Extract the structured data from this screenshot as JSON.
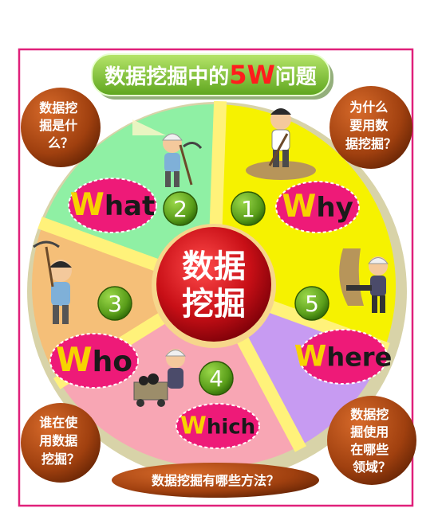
{
  "title": {
    "prefix": "数据挖掘中的",
    "highlight": "5W",
    "suffix": "问题"
  },
  "center": {
    "line1": "数据",
    "line2": "挖掘"
  },
  "segments": [
    {
      "num": "1",
      "first": "W",
      "rest": "hy",
      "color": "#f6f200"
    },
    {
      "num": "2",
      "first": "W",
      "rest": "hat",
      "color": "#8ff0a4"
    },
    {
      "num": "3",
      "first": "W",
      "rest": "ho",
      "color": "#f5bf78"
    },
    {
      "num": "4",
      "first": "W",
      "rest": "hich",
      "color": "#f8a6b4"
    },
    {
      "num": "5",
      "first": "W",
      "rest": "here",
      "color": "#c79bf2"
    }
  ],
  "questions": {
    "what": [
      "数据挖",
      "掘是什",
      "么？"
    ],
    "why": [
      "为什么",
      "要用数",
      "据挖掘？"
    ],
    "who": [
      "谁在使",
      "用数据",
      "挖掘？"
    ],
    "where": [
      "数据挖",
      "掘使用",
      "在哪些",
      "领域？"
    ],
    "which": "数据挖掘有哪些方法？"
  },
  "colors": {
    "frame": "#e0207a",
    "title_bg": "#8fce3a",
    "highlight": "#ff1d1d",
    "bubble": "#a0400f",
    "center": "#c80f16",
    "number_circle": "#5a9e1a",
    "label_oval": "#ee1a78",
    "w_letter": "#f7d300",
    "divider": "#fff27a"
  }
}
